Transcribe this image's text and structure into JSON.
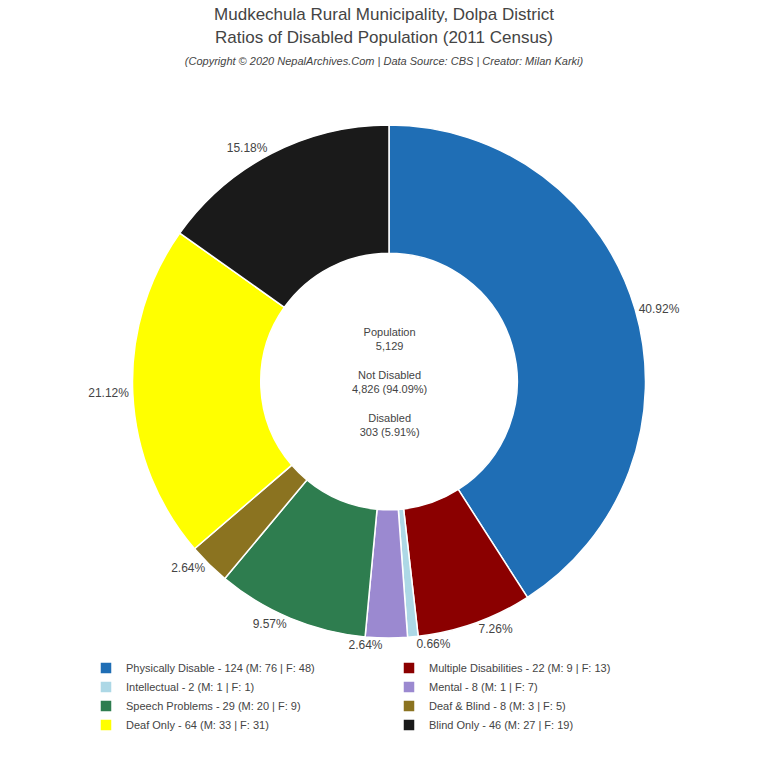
{
  "chart_data": {
    "type": "pie",
    "title": "Mudkechula Rural Municipality, Dolpa District\nRatios of Disabled Population (2011 Census)",
    "subtitle": "(Copyright © 2020 NepalArchives.Com | Data Source: CBS | Creator: Milan Karki)",
    "categories": [
      "Physically Disable - 124 (M: 76 | F: 48)",
      "Multiple Disabilities - 22 (M: 9 | F: 13)",
      "Intellectual - 2 (M: 1 | F: 1)",
      "Mental - 8 (M: 1 | F: 7)",
      "Speech Problems - 29 (M: 20 | F: 9)",
      "Deaf & Blind - 8 (M: 3 | F: 5)",
      "Deaf Only - 64 (M: 33 | F: 31)",
      "Blind Only - 46 (M: 27 | F: 19)"
    ],
    "values": [
      40.92,
      7.26,
      0.66,
      2.64,
      9.57,
      2.64,
      21.12,
      15.18
    ],
    "value_labels": [
      "40.92%",
      "7.26%",
      "0.66%",
      "2.64%",
      "9.57%",
      "2.64%",
      "21.12%",
      "15.18%"
    ],
    "colors": [
      "#1f6eb5",
      "#8b0000",
      "#add8e6",
      "#9b89d0",
      "#2e7d4f",
      "#8b7320",
      "#ffff00",
      "#1a1a1a"
    ],
    "data_labels": true,
    "legend": "bottom",
    "annotations": [
      "Population\n5,129\n\nNot Disabled\n4,826 (94.09%)\n\nDisabled\n303 (5.91%)"
    ]
  }
}
